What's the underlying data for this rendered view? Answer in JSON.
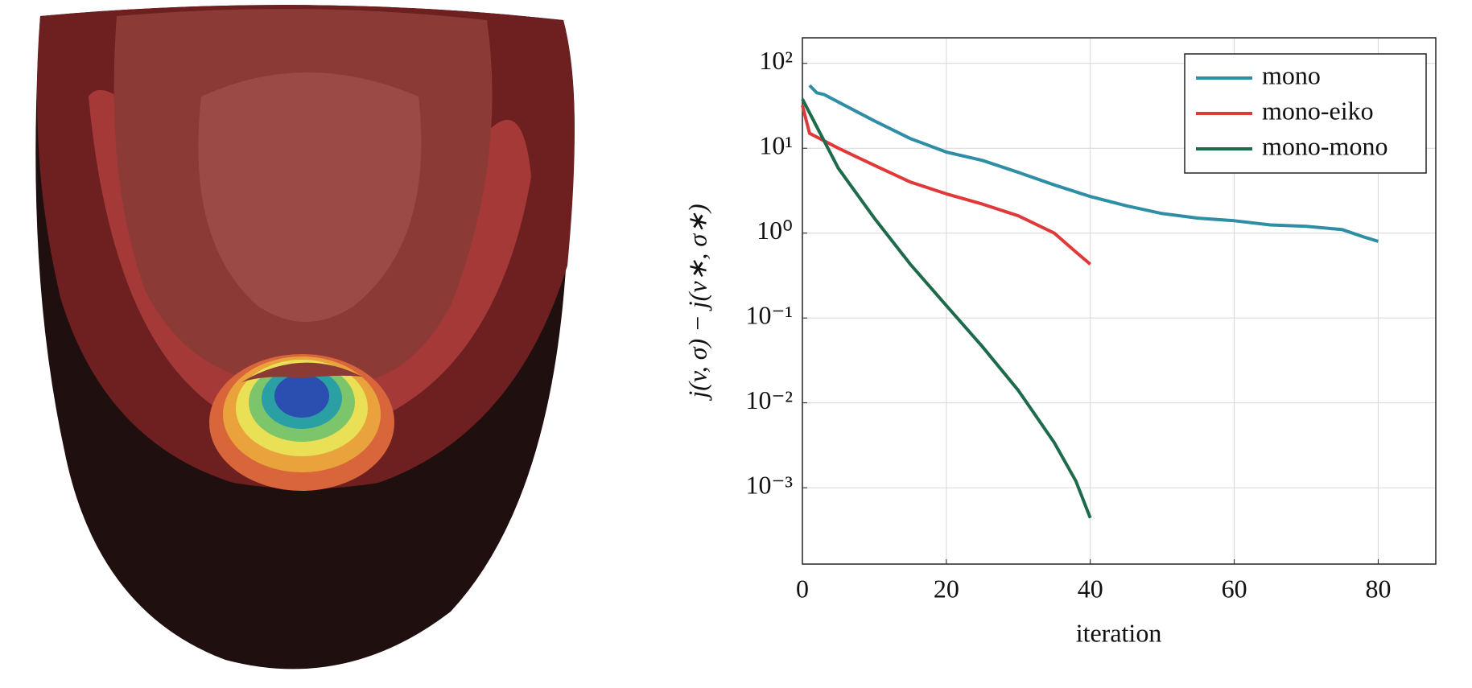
{
  "chart_data": {
    "type": "line",
    "xlabel": "iteration",
    "ylabel": "j(v, σ) − j(v∗, σ∗)",
    "xlim": [
      0,
      88
    ],
    "xticks": [
      0,
      20,
      40,
      60,
      80
    ],
    "ylim": [
      0.000126,
      200
    ],
    "yticks": [
      {
        "value": 0.001,
        "label": "10⁻³"
      },
      {
        "value": 0.01,
        "label": "10⁻²"
      },
      {
        "value": 0.1,
        "label": "10⁻¹"
      },
      {
        "value": 1,
        "label": "10⁰"
      },
      {
        "value": 10,
        "label": "10¹"
      },
      {
        "value": 100,
        "label": "10²"
      }
    ],
    "log_y": true,
    "grid": true,
    "legend": "top-right",
    "series": [
      {
        "name": "mono",
        "color": "#2f8ea6",
        "x": [
          1,
          2,
          3,
          5,
          10,
          15,
          20,
          25,
          30,
          35,
          40,
          45,
          50,
          55,
          60,
          65,
          70,
          75,
          78,
          80
        ],
        "values": [
          55,
          45,
          43,
          35,
          21,
          13,
          9,
          7.2,
          5.2,
          3.7,
          2.7,
          2.1,
          1.7,
          1.5,
          1.4,
          1.25,
          1.2,
          1.1,
          0.9,
          0.8
        ]
      },
      {
        "name": "mono-eiko",
        "color": "#e0393a",
        "x": [
          0,
          1,
          5,
          10,
          15,
          20,
          25,
          30,
          35,
          38,
          40
        ],
        "values": [
          32,
          15,
          10,
          6.3,
          4,
          2.9,
          2.2,
          1.6,
          1.0,
          0.6,
          0.43
        ]
      },
      {
        "name": "mono-mono",
        "color": "#1d6b4b",
        "x": [
          0,
          5,
          10,
          15,
          20,
          25,
          30,
          35,
          38,
          40
        ],
        "values": [
          38,
          5.8,
          1.5,
          0.43,
          0.14,
          0.046,
          0.014,
          0.0034,
          0.0012,
          0.00044
        ]
      }
    ]
  }
}
